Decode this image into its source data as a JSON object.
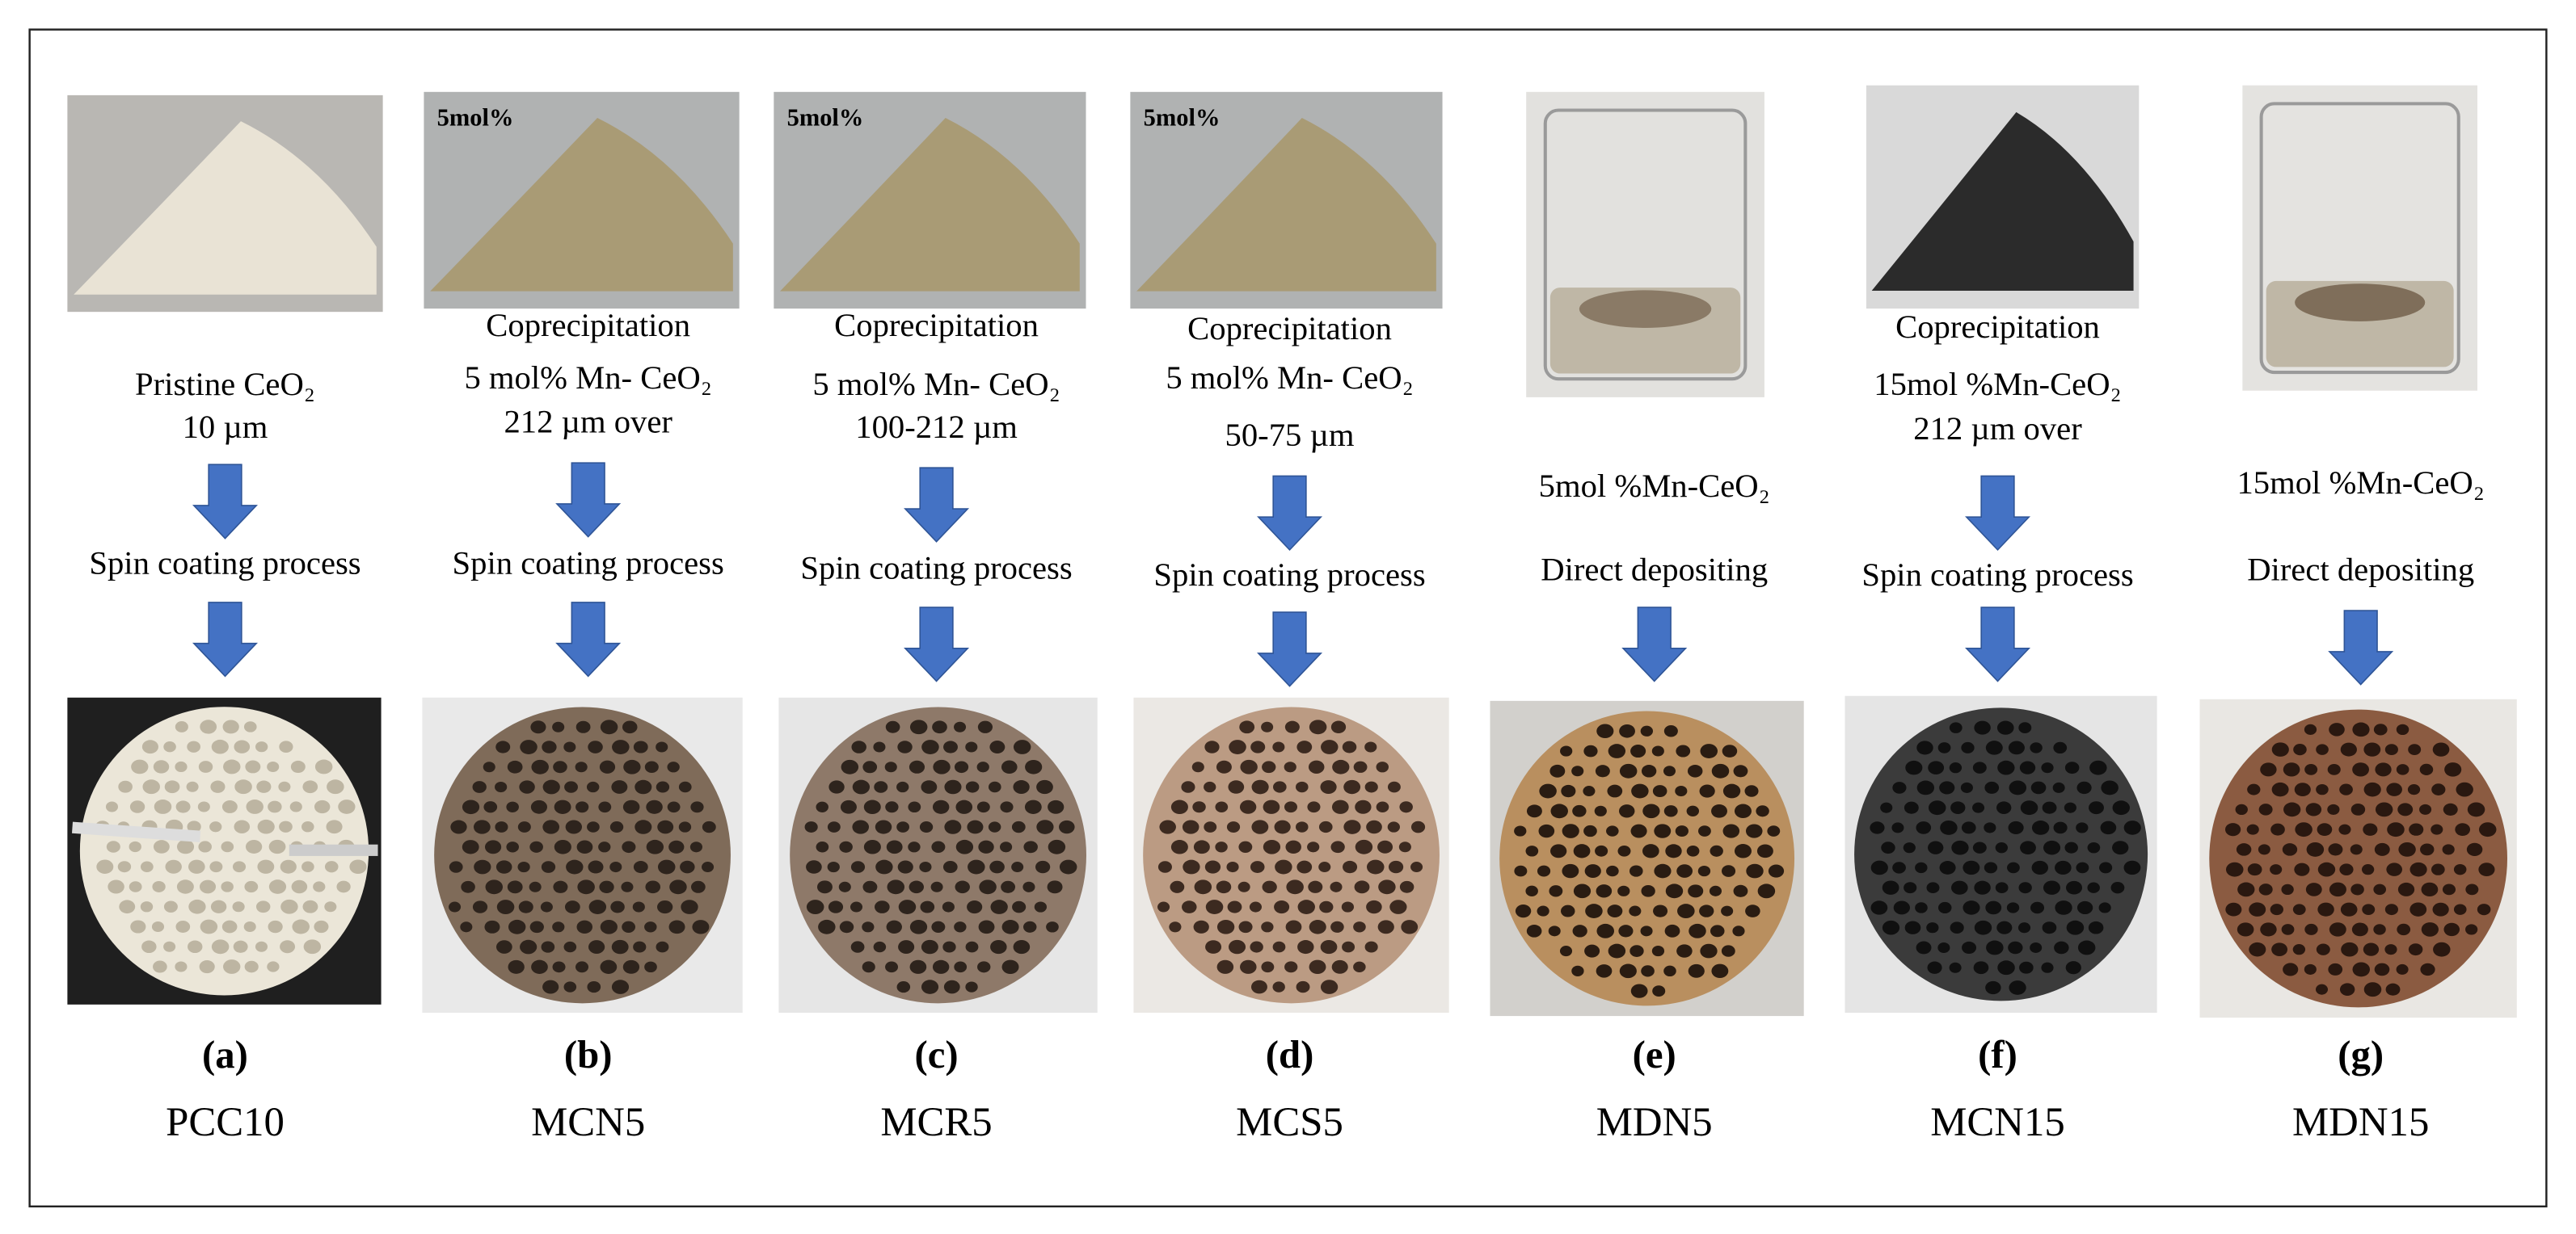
{
  "panels": [
    {
      "description": [
        "Pristine CeO₂",
        "10 µm"
      ],
      "process": "Spin coating process",
      "letter": "(a)",
      "name": "PCC10"
    },
    {
      "photo_label": "5mol%",
      "description": [
        "Coprecipitation",
        "5 mol% Mn- CeO₂",
        "212 µm over"
      ],
      "process": "Spin coating process",
      "letter": "(b)",
      "name": "MCN5"
    },
    {
      "photo_label": "5mol%",
      "description": [
        "Coprecipitation",
        "5 mol% Mn- CeO₂",
        "100-212 µm"
      ],
      "process": "Spin coating process",
      "letter": "(c)",
      "name": "MCR5"
    },
    {
      "photo_label": "5mol%",
      "description": [
        "Coprecipitation",
        "5 mol% Mn- CeO₂",
        "50-75 µm"
      ],
      "process": "Spin coating process",
      "letter": "(d)",
      "name": "MCS5"
    },
    {
      "description": [
        "5mol %Mn-CeO₂"
      ],
      "process": "Direct depositing",
      "letter": "(e)",
      "name": "MDN5"
    },
    {
      "description": [
        "Coprecipitation",
        "15mol %Mn-CeO₂",
        "212 µm over"
      ],
      "process": "Spin coating process",
      "letter": "(f)",
      "name": "MCN15"
    },
    {
      "description": [
        "15mol %Mn-CeO₂"
      ],
      "process": "Direct depositing",
      "letter": "(g)",
      "name": "MDN15"
    }
  ]
}
